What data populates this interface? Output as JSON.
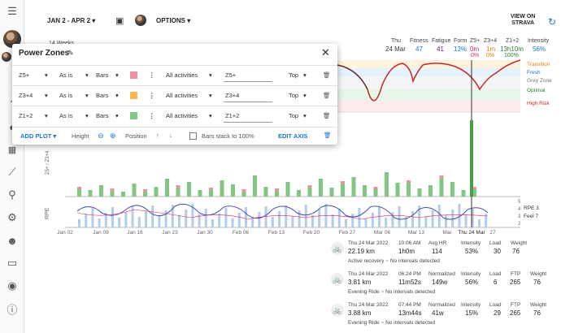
{
  "header": {
    "date_range": "JAN 2 - APR 2 ▾",
    "options": "OPTIONS ▾",
    "view_on": "VIEW ON",
    "strava": "STRAVA",
    "weeks": "14 Weeks",
    "day": "Thu",
    "date": "24 Mar",
    "fitness_label": "Fitness",
    "fitness_val": "47",
    "fatigue_label": "Fatigue",
    "fatigue_val": "41",
    "form_label": "Form",
    "form_val": "13%",
    "z5_label": "Z5+",
    "z5_val": "0m",
    "z5_pct": "0%",
    "z34_label": "Z3+4",
    "z34_val": "1m",
    "z34_pct": "0%",
    "z12_label": "Z1+2",
    "z12_val": "13h10m",
    "z12_pct": "100%",
    "intensity_label": "Intensity",
    "intensity_val": "56%"
  },
  "zones_legend": [
    "Transition",
    "Fresh",
    "Grey Zone",
    "Optimal",
    "High Risk"
  ],
  "panel": {
    "title": "Power Zones",
    "rows": [
      {
        "name": "Z5+",
        "mode": "As is",
        "type": "Bars",
        "color": "#f48fa0",
        "filter": "All activities",
        "label": "Z5+",
        "position": "Top"
      },
      {
        "name": "Z3+4",
        "mode": "As is",
        "type": "Bars",
        "color": "#ffb74d",
        "filter": "All activities",
        "label": "Z3+4",
        "position": "Top"
      },
      {
        "name": "Z1+2",
        "mode": "As is",
        "type": "Bars",
        "color": "#81c784",
        "filter": "All activities",
        "label": "Z1+2",
        "position": "Top"
      }
    ],
    "add_plot": "ADD PLOT ▾",
    "height": "Height",
    "position": "Position",
    "stack": "Bars stack to 100%",
    "edit_axis": "EDIT AXIS"
  },
  "chart": {
    "x_labels": [
      "Jan 02",
      "Jan 09",
      "Jan 16",
      "Jan 23",
      "Jan 30",
      "Feb 06",
      "Feb 13",
      "Feb 20",
      "Feb 27",
      "Mar 06",
      "Mar 13",
      "Mar",
      "Thu 24 Mar",
      "27"
    ],
    "rpe_label": "RPE",
    "rpe_axis": [
      "5",
      "4",
      "3",
      "2"
    ],
    "feel_legend": "RPE 3",
    "feel_legend2": "Feel 7",
    "zaxis": "Z5+ / Z3+4"
  },
  "activities": [
    {
      "date": "Thu 24 Mar 2022",
      "dist": "22.19 km",
      "time_label": "10:06 AM",
      "time": "1h0m",
      "hr_label": "Avg HR",
      "hr": "114",
      "int_label": "Intensity",
      "int": "53%",
      "load_label": "Load",
      "load": "30",
      "w_label": "Weight",
      "w": "76",
      "note": "Active recovery ~ No intervals detected"
    },
    {
      "date": "Thu 24 Mar 2022",
      "dist": "3.81 km",
      "time_label": "06:24 PM",
      "time": "11m52s",
      "hr_label": "Normalized",
      "hr": "149w",
      "int_label": "Intensity",
      "int": "56%",
      "load_label": "Load",
      "load": "6",
      "ftp_label": "FTP",
      "ftp": "265",
      "w_label": "Weight",
      "w": "76",
      "note": "Evening Ride ~ No intervals detected"
    },
    {
      "date": "Thu 24 Mar 2022",
      "dist": "3.88 km",
      "time_label": "07:44 PM",
      "time": "13m44s",
      "hr_label": "Normalized",
      "hr": "41w",
      "int_label": "Intensity",
      "int": "15%",
      "load_label": "Load",
      "load": "29",
      "ftp_label": "FTP",
      "ftp": "265",
      "w_label": "Weight",
      "w": "76",
      "note": "Evening Ride ~ No intervals detected"
    }
  ]
}
